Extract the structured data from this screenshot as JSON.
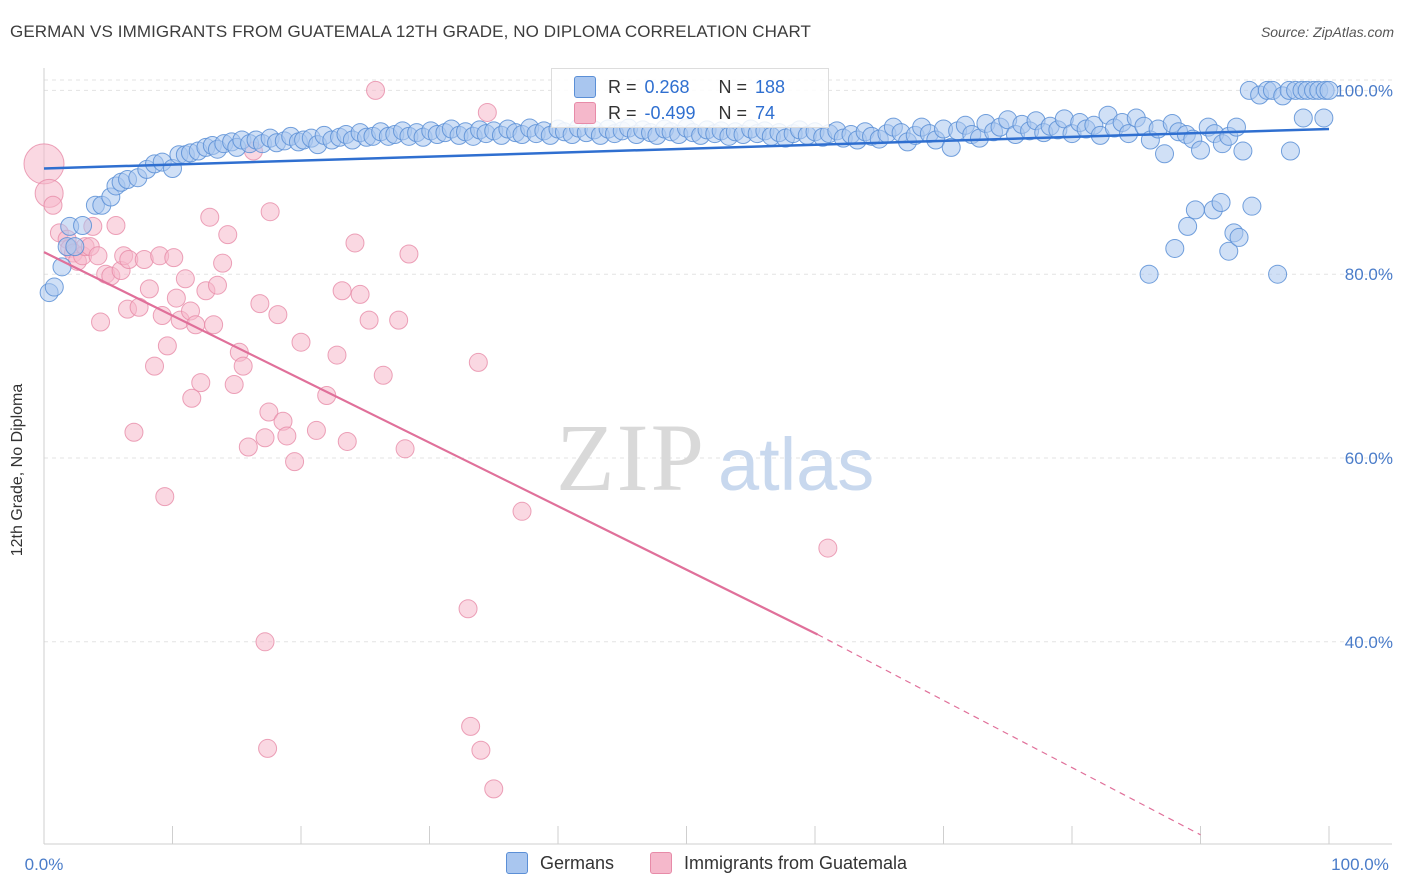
{
  "title": "GERMAN VS IMMIGRANTS FROM GUATEMALA 12TH GRADE, NO DIPLOMA CORRELATION CHART",
  "source": "Source: ZipAtlas.com",
  "watermark": {
    "zip": "ZIP",
    "atlas": "atlas"
  },
  "colors": {
    "blue_fill": "#a9c6ef",
    "blue_stroke": "#5b8fd6",
    "blue_line": "#2f6fd0",
    "pink_fill": "#f5b8cb",
    "pink_stroke": "#e78ba8",
    "pink_line": "#e0709a",
    "tick_text": "#4a7cc9",
    "grid": "#e3e3e3"
  },
  "legend": {
    "rows": [
      {
        "r_label": "R =",
        "r_value": "0.268",
        "n_label": "N =",
        "n_value": "188"
      },
      {
        "r_label": "R =",
        "r_value": "-0.499",
        "n_label": "N =",
        "n_value": "74"
      }
    ]
  },
  "bottom_legend": {
    "series1": "Germans",
    "series2": "Immigrants from Guatemala"
  },
  "chart_data": {
    "type": "scatter",
    "title": "GERMAN VS IMMIGRANTS FROM GUATEMALA 12TH GRADE, NO DIPLOMA CORRELATION CHART",
    "xlabel": "",
    "ylabel": "12th Grade, No Diploma",
    "xlim": [
      0,
      100
    ],
    "ylim": [
      18,
      102
    ],
    "x_tick_labels": [
      "0.0%",
      "100.0%"
    ],
    "y_ticks": [
      40,
      60,
      80,
      100
    ],
    "y_tick_labels": [
      "40.0%",
      "60.0%",
      "80.0%",
      "100.0%"
    ],
    "grid": "horizontal dashed",
    "series": [
      {
        "name": "Germans",
        "trend": {
          "x0": 0,
          "y0": 91.5,
          "x1": 100,
          "y1": 95.8
        },
        "points": [
          [
            0.4,
            78
          ],
          [
            0.8,
            78.6
          ],
          [
            1.4,
            80.8
          ],
          [
            1.8,
            83
          ],
          [
            2,
            85.2
          ],
          [
            2.4,
            83
          ],
          [
            3,
            85.3
          ],
          [
            4,
            87.5
          ],
          [
            4.5,
            87.5
          ],
          [
            5.2,
            88.4
          ],
          [
            5.6,
            89.6
          ],
          [
            6,
            90
          ],
          [
            6.5,
            90.3
          ],
          [
            7.3,
            90.5
          ],
          [
            8,
            91.4
          ],
          [
            8.6,
            92
          ],
          [
            9.2,
            92.2
          ],
          [
            10,
            91.5
          ],
          [
            10.5,
            93
          ],
          [
            11,
            93
          ],
          [
            11.4,
            93.2
          ],
          [
            12,
            93.4
          ],
          [
            12.6,
            93.8
          ],
          [
            13.1,
            94
          ],
          [
            13.5,
            93.6
          ],
          [
            14,
            94.2
          ],
          [
            14.6,
            94.4
          ],
          [
            15,
            93.8
          ],
          [
            15.4,
            94.6
          ],
          [
            16,
            94.2
          ],
          [
            16.5,
            94.6
          ],
          [
            17,
            94.2
          ],
          [
            17.6,
            94.8
          ],
          [
            18.1,
            94.3
          ],
          [
            18.7,
            94.5
          ],
          [
            19.2,
            95
          ],
          [
            19.8,
            94.4
          ],
          [
            20.2,
            94.6
          ],
          [
            20.8,
            94.8
          ],
          [
            21.3,
            94.1
          ],
          [
            21.8,
            95.1
          ],
          [
            22.4,
            94.6
          ],
          [
            23,
            94.9
          ],
          [
            23.5,
            95.2
          ],
          [
            24,
            94.6
          ],
          [
            24.6,
            95.4
          ],
          [
            25.1,
            94.9
          ],
          [
            25.6,
            95
          ],
          [
            26.2,
            95.5
          ],
          [
            26.8,
            95
          ],
          [
            27.3,
            95.2
          ],
          [
            27.9,
            95.6
          ],
          [
            28.4,
            95
          ],
          [
            29,
            95.4
          ],
          [
            29.5,
            94.9
          ],
          [
            30.1,
            95.6
          ],
          [
            30.6,
            95.2
          ],
          [
            31.2,
            95.4
          ],
          [
            31.7,
            95.8
          ],
          [
            32.3,
            95.1
          ],
          [
            32.8,
            95.5
          ],
          [
            33.4,
            95
          ],
          [
            33.9,
            95.7
          ],
          [
            34.4,
            95.3
          ],
          [
            35,
            95.6
          ],
          [
            35.6,
            95.1
          ],
          [
            36.1,
            95.8
          ],
          [
            36.7,
            95.4
          ],
          [
            37.2,
            95.2
          ],
          [
            37.8,
            95.9
          ],
          [
            38.3,
            95.3
          ],
          [
            38.9,
            95.6
          ],
          [
            39.4,
            95.1
          ],
          [
            40,
            95.8
          ],
          [
            40.5,
            95.5
          ],
          [
            41.1,
            95.2
          ],
          [
            41.6,
            95.9
          ],
          [
            42.2,
            95.4
          ],
          [
            42.8,
            95.7
          ],
          [
            43.3,
            95.1
          ],
          [
            43.9,
            95.8
          ],
          [
            44.4,
            95.3
          ],
          [
            45,
            95.6
          ],
          [
            45.5,
            95.9
          ],
          [
            46.1,
            95.2
          ],
          [
            46.6,
            95.7
          ],
          [
            47.2,
            95.4
          ],
          [
            47.7,
            95.1
          ],
          [
            48.3,
            95.8
          ],
          [
            48.8,
            95.5
          ],
          [
            49.4,
            95.2
          ],
          [
            50,
            95.9
          ],
          [
            50.5,
            95.4
          ],
          [
            51.1,
            95.1
          ],
          [
            51.6,
            95.7
          ],
          [
            52.2,
            95.3
          ],
          [
            52.7,
            95.6
          ],
          [
            53.3,
            95
          ],
          [
            53.8,
            95.5
          ],
          [
            54.4,
            95.2
          ],
          [
            55,
            95.8
          ],
          [
            55.5,
            95.3
          ],
          [
            56.1,
            95.6
          ],
          [
            56.6,
            95
          ],
          [
            57.2,
            95.4
          ],
          [
            57.7,
            94.8
          ],
          [
            58.3,
            95.3
          ],
          [
            58.8,
            95.7
          ],
          [
            59.4,
            95.1
          ],
          [
            60,
            95.5
          ],
          [
            60.6,
            94.9
          ],
          [
            61.1,
            95.3
          ],
          [
            61.7,
            95.6
          ],
          [
            62.2,
            94.8
          ],
          [
            62.8,
            95.2
          ],
          [
            63.3,
            94.6
          ],
          [
            63.9,
            95.5
          ],
          [
            64.4,
            95
          ],
          [
            65,
            94.7
          ],
          [
            65.6,
            95.3
          ],
          [
            66.1,
            96
          ],
          [
            66.7,
            95.4
          ],
          [
            67.2,
            94.4
          ],
          [
            67.8,
            95.1
          ],
          [
            68.3,
            96
          ],
          [
            68.9,
            95.3
          ],
          [
            69.4,
            94.6
          ],
          [
            70,
            95.8
          ],
          [
            70.6,
            93.8
          ],
          [
            71.1,
            95.6
          ],
          [
            71.7,
            96.2
          ],
          [
            72.2,
            95.2
          ],
          [
            72.8,
            94.8
          ],
          [
            73.3,
            96.4
          ],
          [
            73.9,
            95.5
          ],
          [
            74.4,
            96
          ],
          [
            75,
            96.8
          ],
          [
            75.6,
            95.2
          ],
          [
            76.1,
            96.3
          ],
          [
            76.7,
            95.6
          ],
          [
            77.2,
            96.7
          ],
          [
            77.8,
            95.4
          ],
          [
            78.3,
            96.1
          ],
          [
            78.9,
            95.7
          ],
          [
            79.4,
            96.9
          ],
          [
            80,
            95.3
          ],
          [
            80.6,
            96.5
          ],
          [
            81.1,
            95.8
          ],
          [
            81.7,
            96.2
          ],
          [
            82.2,
            95.1
          ],
          [
            82.8,
            97.3
          ],
          [
            83.3,
            95.9
          ],
          [
            83.9,
            96.5
          ],
          [
            84.4,
            95.3
          ],
          [
            85,
            97
          ],
          [
            85.6,
            96.1
          ],
          [
            86.1,
            94.6
          ],
          [
            86.7,
            95.8
          ],
          [
            87.2,
            93.1
          ],
          [
            87.8,
            96.4
          ],
          [
            88.3,
            95.5
          ],
          [
            88.9,
            95.2
          ],
          [
            89.4,
            94.7
          ],
          [
            90,
            93.5
          ],
          [
            90.6,
            96
          ],
          [
            91.1,
            95.3
          ],
          [
            91.7,
            94.2
          ],
          [
            92.2,
            95
          ],
          [
            92.8,
            96
          ],
          [
            93.3,
            93.4
          ],
          [
            86,
            80
          ],
          [
            88,
            82.8
          ],
          [
            89,
            85.2
          ],
          [
            89.6,
            87
          ],
          [
            91,
            87
          ],
          [
            91.6,
            87.8
          ],
          [
            92.2,
            82.5
          ],
          [
            92.6,
            84.5
          ],
          [
            93,
            84
          ],
          [
            94,
            87.4
          ],
          [
            93.8,
            100
          ],
          [
            94.6,
            99.5
          ],
          [
            95.2,
            100
          ],
          [
            95.6,
            100
          ],
          [
            96.4,
            99.4
          ],
          [
            96.9,
            100
          ],
          [
            97.4,
            100
          ],
          [
            97.9,
            100
          ],
          [
            98.3,
            100
          ],
          [
            98.8,
            100
          ],
          [
            99.2,
            100
          ],
          [
            99.7,
            100
          ],
          [
            100,
            100
          ],
          [
            96,
            80
          ],
          [
            97,
            93.4
          ],
          [
            98,
            97
          ],
          [
            99.6,
            97
          ]
        ]
      },
      {
        "name": "Immigrants from Guatemala",
        "trend": {
          "x0": 0,
          "y0": 82.4,
          "x1": 60.2,
          "y1": 40.8
        },
        "trend_dashed": {
          "x0": 60.2,
          "y0": 40.8,
          "x1": 90,
          "y1": 19
        },
        "points": [
          [
            0,
            92
          ],
          [
            0.4,
            88.8
          ],
          [
            0.7,
            87.5
          ],
          [
            1.2,
            84.5
          ],
          [
            1.8,
            83.8
          ],
          [
            2,
            82.8
          ],
          [
            2.3,
            82.3
          ],
          [
            2.6,
            81.4
          ],
          [
            3,
            82
          ],
          [
            3.2,
            83
          ],
          [
            3.6,
            83
          ],
          [
            3.8,
            85.2
          ],
          [
            4.2,
            82
          ],
          [
            4.4,
            74.8
          ],
          [
            4.8,
            80
          ],
          [
            5.2,
            79.8
          ],
          [
            5.6,
            85.3
          ],
          [
            6,
            80.4
          ],
          [
            6.2,
            82
          ],
          [
            6.5,
            76.2
          ],
          [
            6.6,
            81.6
          ],
          [
            7,
            62.8
          ],
          [
            7.4,
            76.4
          ],
          [
            7.8,
            81.6
          ],
          [
            8.2,
            78.4
          ],
          [
            8.6,
            70
          ],
          [
            9,
            82
          ],
          [
            9.2,
            75.5
          ],
          [
            9.4,
            55.8
          ],
          [
            9.6,
            72.2
          ],
          [
            10.1,
            81.8
          ],
          [
            10.3,
            77.4
          ],
          [
            10.6,
            75
          ],
          [
            11,
            79.5
          ],
          [
            11.4,
            76
          ],
          [
            11.8,
            74.5
          ],
          [
            11.5,
            66.5
          ],
          [
            12.2,
            68.2
          ],
          [
            12.6,
            78.2
          ],
          [
            12.9,
            86.2
          ],
          [
            13.2,
            74.5
          ],
          [
            13.5,
            78.8
          ],
          [
            13.9,
            81.2
          ],
          [
            14.3,
            84.3
          ],
          [
            14.8,
            68
          ],
          [
            15.2,
            71.5
          ],
          [
            15.5,
            70
          ],
          [
            15.9,
            61.2
          ],
          [
            16.3,
            93.4
          ],
          [
            16.8,
            76.8
          ],
          [
            17.2,
            62.2
          ],
          [
            17.6,
            86.8
          ],
          [
            17.5,
            65
          ],
          [
            18.2,
            75.6
          ],
          [
            18.6,
            64
          ],
          [
            18.9,
            62.4
          ],
          [
            19.5,
            59.6
          ],
          [
            20,
            72.6
          ],
          [
            21.2,
            63
          ],
          [
            22,
            66.8
          ],
          [
            22.8,
            71.2
          ],
          [
            23.2,
            78.2
          ],
          [
            23.6,
            61.8
          ],
          [
            24.2,
            83.4
          ],
          [
            24.6,
            77.8
          ],
          [
            25.3,
            75
          ],
          [
            25.8,
            100
          ],
          [
            26.4,
            69
          ],
          [
            27.6,
            75
          ],
          [
            28.4,
            82.2
          ],
          [
            28.1,
            61
          ],
          [
            33,
            43.6
          ],
          [
            33.2,
            30.8
          ],
          [
            34,
            28.2
          ],
          [
            33.8,
            70.4
          ],
          [
            34.5,
            97.6
          ],
          [
            35,
            24
          ],
          [
            37.2,
            54.2
          ],
          [
            61,
            50.2
          ],
          [
            17.2,
            40
          ],
          [
            17.4,
            28.4
          ]
        ]
      }
    ]
  }
}
